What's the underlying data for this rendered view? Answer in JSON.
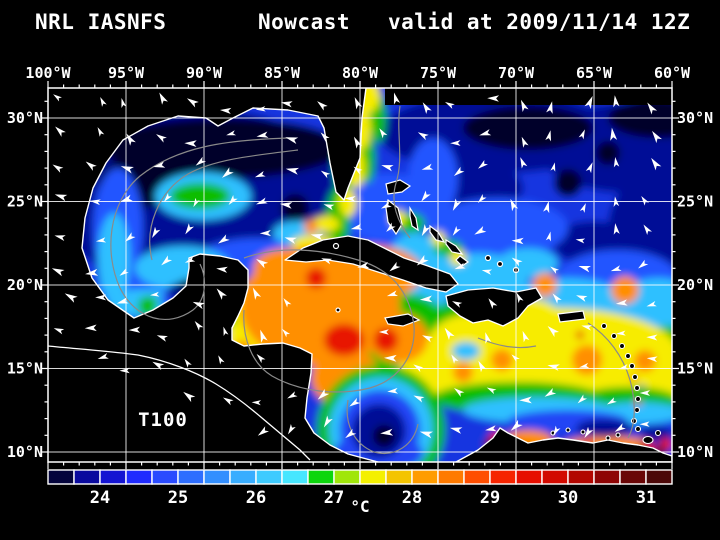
{
  "title": {
    "model": "NRL IASNFS",
    "product": "Nowcast",
    "valid": "valid at 2009/11/14 12Z"
  },
  "map": {
    "annotation": "T100",
    "lon_labels": [
      "100°W",
      "95°W",
      "90°W",
      "85°W",
      "80°W",
      "75°W",
      "70°W",
      "65°W",
      "60°W"
    ],
    "lat_labels": [
      "30°N",
      "25°N",
      "20°N",
      "15°N",
      "10°N"
    ]
  },
  "colorbar": {
    "unit": "°C",
    "tick_labels": [
      "24",
      "25",
      "26",
      "27",
      "28",
      "29",
      "30",
      "31"
    ],
    "cell_colors": [
      "#04043c",
      "#0a0a9e",
      "#1414d2",
      "#1f2bff",
      "#2a4bff",
      "#2e6eff",
      "#338fff",
      "#38adff",
      "#3ecbff",
      "#46e6ff",
      "#0cd60c",
      "#a0e60a",
      "#f4f000",
      "#f4c400",
      "#ff9c00",
      "#ff7a00",
      "#ff4e00",
      "#f62400",
      "#e60e00",
      "#d20a00",
      "#b20600",
      "#8e0404",
      "#6a0606",
      "#4c0808"
    ]
  },
  "colors": {
    "background": "#000000",
    "frame": "#ffffff",
    "grid": "#ffffff",
    "contour": "#8a8a8a",
    "arrow": "#ffffff"
  }
}
